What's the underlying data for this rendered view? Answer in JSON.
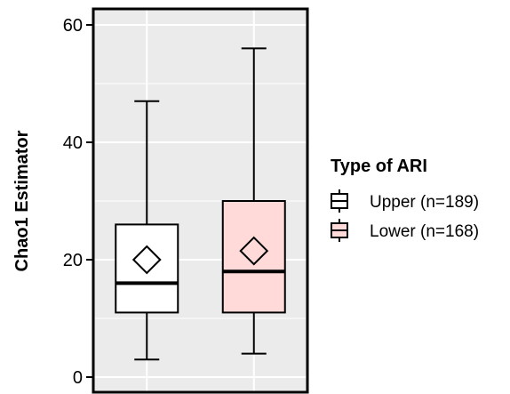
{
  "chart_data": {
    "type": "boxplot",
    "title": "",
    "xlabel": "",
    "ylabel": "Chao1 Estimator",
    "ylim": [
      0,
      62
    ],
    "yticks": [
      0,
      20,
      40,
      60
    ],
    "grid": true,
    "legend": {
      "title": "Type of ARI",
      "placement": "right"
    },
    "series": [
      {
        "name": "Upper (n=189)",
        "whisker_low": 3,
        "q1": 11,
        "median": 16,
        "q3": 26,
        "whisker_high": 47,
        "mean": 20,
        "fill": "#ffffff"
      },
      {
        "name": "Lower (n=168)",
        "whisker_low": 4,
        "q1": 11,
        "median": 18,
        "q3": 30,
        "whisker_high": 56,
        "mean": 21.5,
        "fill": "#ffdad9"
      }
    ]
  },
  "colors": {
    "panel": "#ebebeb",
    "grid": "#ffffff",
    "line": "#000000"
  }
}
